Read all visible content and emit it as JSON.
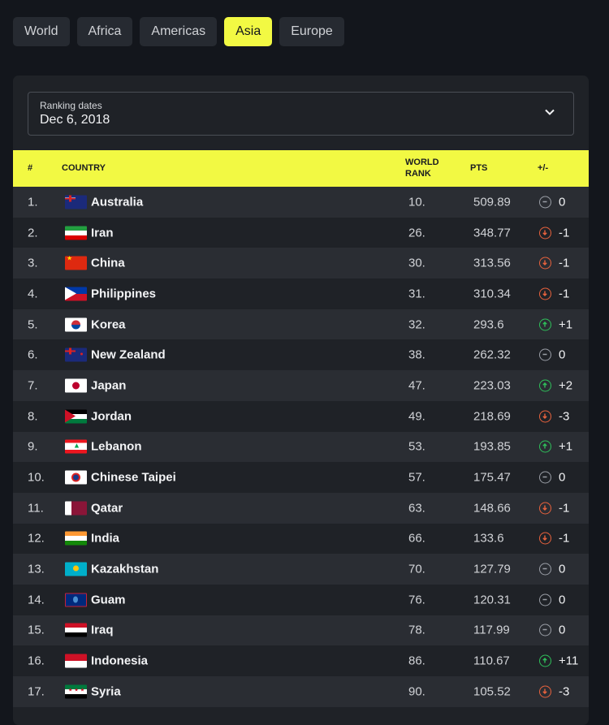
{
  "tabs": [
    {
      "label": "World"
    },
    {
      "label": "Africa"
    },
    {
      "label": "Americas"
    },
    {
      "label": "Asia",
      "active": true
    },
    {
      "label": "Europe"
    }
  ],
  "ranking_dates": {
    "label": "Ranking dates",
    "value": "Dec 6, 2018"
  },
  "table": {
    "headers": {
      "rank": "#",
      "country": "COUNTRY",
      "world_rank_1": "WORLD",
      "world_rank_2": "RANK",
      "pts": "PTS",
      "change": "+/-"
    },
    "colors": {
      "up": "#2fbf5a",
      "down": "#e8623d",
      "same": "#9a9ea6",
      "accent": "#f2f943"
    },
    "rows": [
      {
        "rank": "1.",
        "country": "Australia",
        "flag": "au",
        "world_rank": "10.",
        "pts": "509.89",
        "change": "0",
        "trend": "same"
      },
      {
        "rank": "2.",
        "country": "Iran",
        "flag": "ir",
        "world_rank": "26.",
        "pts": "348.77",
        "change": "-1",
        "trend": "down"
      },
      {
        "rank": "3.",
        "country": "China",
        "flag": "cn",
        "world_rank": "30.",
        "pts": "313.56",
        "change": "-1",
        "trend": "down"
      },
      {
        "rank": "4.",
        "country": "Philippines",
        "flag": "ph",
        "world_rank": "31.",
        "pts": "310.34",
        "change": "-1",
        "trend": "down"
      },
      {
        "rank": "5.",
        "country": "Korea",
        "flag": "kr",
        "world_rank": "32.",
        "pts": "293.6",
        "change": "+1",
        "trend": "up"
      },
      {
        "rank": "6.",
        "country": "New Zealand",
        "flag": "nz",
        "world_rank": "38.",
        "pts": "262.32",
        "change": "0",
        "trend": "same"
      },
      {
        "rank": "7.",
        "country": "Japan",
        "flag": "jp",
        "world_rank": "47.",
        "pts": "223.03",
        "change": "+2",
        "trend": "up"
      },
      {
        "rank": "8.",
        "country": "Jordan",
        "flag": "jo",
        "world_rank": "49.",
        "pts": "218.69",
        "change": "-3",
        "trend": "down"
      },
      {
        "rank": "9.",
        "country": "Lebanon",
        "flag": "lb",
        "world_rank": "53.",
        "pts": "193.85",
        "change": "+1",
        "trend": "up"
      },
      {
        "rank": "10.",
        "country": "Chinese Taipei",
        "flag": "tpe",
        "world_rank": "57.",
        "pts": "175.47",
        "change": "0",
        "trend": "same"
      },
      {
        "rank": "11.",
        "country": "Qatar",
        "flag": "qa",
        "world_rank": "63.",
        "pts": "148.66",
        "change": "-1",
        "trend": "down"
      },
      {
        "rank": "12.",
        "country": "India",
        "flag": "in",
        "world_rank": "66.",
        "pts": "133.6",
        "change": "-1",
        "trend": "down"
      },
      {
        "rank": "13.",
        "country": "Kazakhstan",
        "flag": "kz",
        "world_rank": "70.",
        "pts": "127.79",
        "change": "0",
        "trend": "same"
      },
      {
        "rank": "14.",
        "country": "Guam",
        "flag": "gu",
        "world_rank": "76.",
        "pts": "120.31",
        "change": "0",
        "trend": "same"
      },
      {
        "rank": "15.",
        "country": "Iraq",
        "flag": "iq",
        "world_rank": "78.",
        "pts": "117.99",
        "change": "0",
        "trend": "same"
      },
      {
        "rank": "16.",
        "country": "Indonesia",
        "flag": "id",
        "world_rank": "86.",
        "pts": "110.67",
        "change": "+11",
        "trend": "up"
      },
      {
        "rank": "17.",
        "country": "Syria",
        "flag": "sy",
        "world_rank": "90.",
        "pts": "105.52",
        "change": "-3",
        "trend": "down"
      }
    ]
  }
}
